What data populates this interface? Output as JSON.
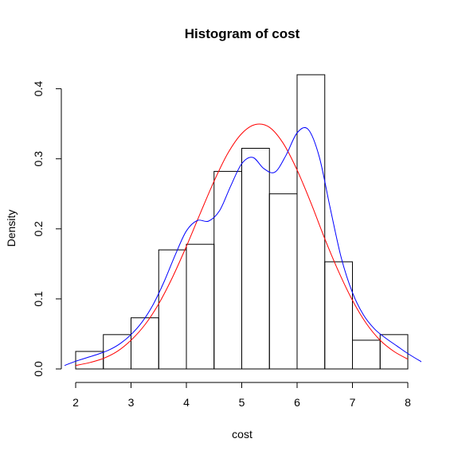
{
  "chart_data": {
    "type": "histogram",
    "title": "Histogram of cost",
    "xlabel": "cost",
    "ylabel": "Density",
    "xlim": [
      2,
      8
    ],
    "ylim": [
      0,
      0.42
    ],
    "x_ticks": [
      "2",
      "3",
      "4",
      "5",
      "6",
      "7",
      "8"
    ],
    "y_ticks": [
      "0.0",
      "0.1",
      "0.2",
      "0.3",
      "0.4"
    ],
    "bins": [
      {
        "start": 2.0,
        "end": 2.5,
        "density": 0.025
      },
      {
        "start": 2.5,
        "end": 3.0,
        "density": 0.049
      },
      {
        "start": 3.0,
        "end": 3.5,
        "density": 0.073
      },
      {
        "start": 3.5,
        "end": 4.0,
        "density": 0.17
      },
      {
        "start": 4.0,
        "end": 4.5,
        "density": 0.178
      },
      {
        "start": 4.5,
        "end": 5.0,
        "density": 0.282
      },
      {
        "start": 5.0,
        "end": 5.5,
        "density": 0.315
      },
      {
        "start": 5.5,
        "end": 6.0,
        "density": 0.25
      },
      {
        "start": 6.0,
        "end": 6.5,
        "density": 0.42
      },
      {
        "start": 6.5,
        "end": 7.0,
        "density": 0.153
      },
      {
        "start": 7.0,
        "end": 7.5,
        "density": 0.041
      },
      {
        "start": 7.5,
        "end": 8.0,
        "density": 0.049
      }
    ],
    "series": [
      {
        "type": "line",
        "color": "#ff0000",
        "x": [
          2.0,
          2.25,
          2.5,
          2.75,
          3.0,
          3.25,
          3.5,
          3.75,
          4.0,
          4.25,
          4.5,
          4.75,
          5.0,
          5.25,
          5.5,
          5.75,
          6.0,
          6.25,
          6.5,
          6.75,
          7.0,
          7.25,
          7.5,
          7.75,
          8.0
        ],
        "y": [
          0.005,
          0.009,
          0.015,
          0.025,
          0.041,
          0.063,
          0.093,
          0.131,
          0.175,
          0.222,
          0.268,
          0.308,
          0.336,
          0.349,
          0.345,
          0.322,
          0.284,
          0.237,
          0.186,
          0.139,
          0.098,
          0.065,
          0.041,
          0.025,
          0.014
        ]
      },
      {
        "type": "line",
        "color": "#0000ff",
        "x": [
          1.8,
          2.0,
          2.2,
          2.4,
          2.6,
          2.8,
          3.0,
          3.2,
          3.4,
          3.6,
          3.8,
          4.0,
          4.2,
          4.4,
          4.6,
          4.8,
          5.0,
          5.2,
          5.4,
          5.6,
          5.8,
          6.0,
          6.2,
          6.4,
          6.6,
          6.8,
          7.0,
          7.2,
          7.4,
          7.6,
          7.8,
          8.0,
          8.25
        ],
        "y": [
          0.005,
          0.011,
          0.016,
          0.021,
          0.027,
          0.036,
          0.049,
          0.067,
          0.092,
          0.125,
          0.163,
          0.197,
          0.212,
          0.211,
          0.226,
          0.261,
          0.293,
          0.302,
          0.286,
          0.281,
          0.305,
          0.337,
          0.342,
          0.303,
          0.229,
          0.158,
          0.109,
          0.077,
          0.057,
          0.044,
          0.033,
          0.022,
          0.01
        ]
      }
    ],
    "grid": false,
    "legend": "none"
  }
}
